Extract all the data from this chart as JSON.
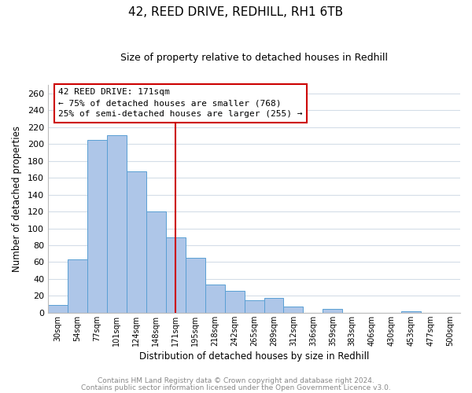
{
  "title": "42, REED DRIVE, REDHILL, RH1 6TB",
  "subtitle": "Size of property relative to detached houses in Redhill",
  "xlabel": "Distribution of detached houses by size in Redhill",
  "ylabel": "Number of detached properties",
  "bar_labels": [
    "30sqm",
    "54sqm",
    "77sqm",
    "101sqm",
    "124sqm",
    "148sqm",
    "171sqm",
    "195sqm",
    "218sqm",
    "242sqm",
    "265sqm",
    "289sqm",
    "312sqm",
    "336sqm",
    "359sqm",
    "383sqm",
    "406sqm",
    "430sqm",
    "453sqm",
    "477sqm",
    "500sqm"
  ],
  "bar_heights": [
    9,
    63,
    205,
    210,
    168,
    120,
    89,
    65,
    33,
    26,
    15,
    18,
    7,
    0,
    5,
    0,
    0,
    0,
    2,
    0,
    0
  ],
  "bar_color": "#aec6e8",
  "bar_edge_color": "#5a9fd4",
  "marker_index": 6,
  "marker_color": "#cc0000",
  "ylim": [
    0,
    270
  ],
  "yticks": [
    0,
    20,
    40,
    60,
    80,
    100,
    120,
    140,
    160,
    180,
    200,
    220,
    240,
    260
  ],
  "annotation_title": "42 REED DRIVE: 171sqm",
  "annotation_line1": "← 75% of detached houses are smaller (768)",
  "annotation_line2": "25% of semi-detached houses are larger (255) →",
  "footer1": "Contains HM Land Registry data © Crown copyright and database right 2024.",
  "footer2": "Contains public sector information licensed under the Open Government Licence v3.0.",
  "background_color": "#ffffff",
  "grid_color": "#d4dde8"
}
